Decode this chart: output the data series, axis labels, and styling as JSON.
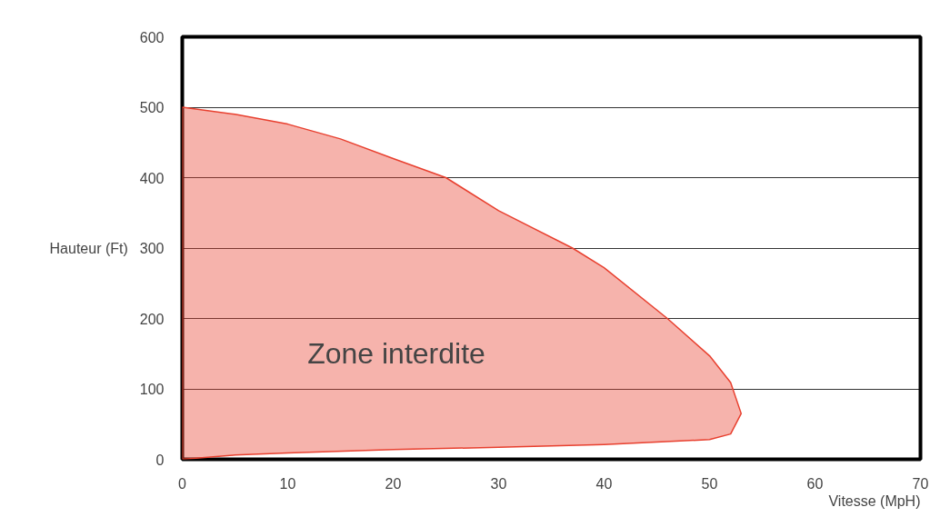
{
  "chart_data": {
    "type": "area",
    "xlabel": "Vitesse (MpH)",
    "ylabel": "Hauteur (Ft)",
    "series": [
      {
        "color": "#e8402f",
        "x": [
          0,
          5,
          10,
          15,
          20,
          25,
          30,
          37,
          40,
          46,
          50,
          52,
          53,
          52,
          50,
          40,
          30,
          20,
          10,
          5,
          0
        ],
        "values": [
          500,
          490,
          476,
          455,
          427,
          400,
          353,
          300,
          272,
          200,
          147,
          109,
          65,
          36,
          28,
          21,
          17,
          14,
          9,
          6,
          0
        ]
      }
    ],
    "annotations": [
      "Zone interdite"
    ],
    "xlim": [
      0,
      70
    ],
    "ylim": [
      0,
      600
    ],
    "xticks": [
      0,
      10,
      20,
      30,
      40,
      50,
      60,
      70
    ],
    "yticks": [
      0,
      100,
      200,
      300,
      400,
      500,
      600
    ],
    "grid": "y"
  }
}
